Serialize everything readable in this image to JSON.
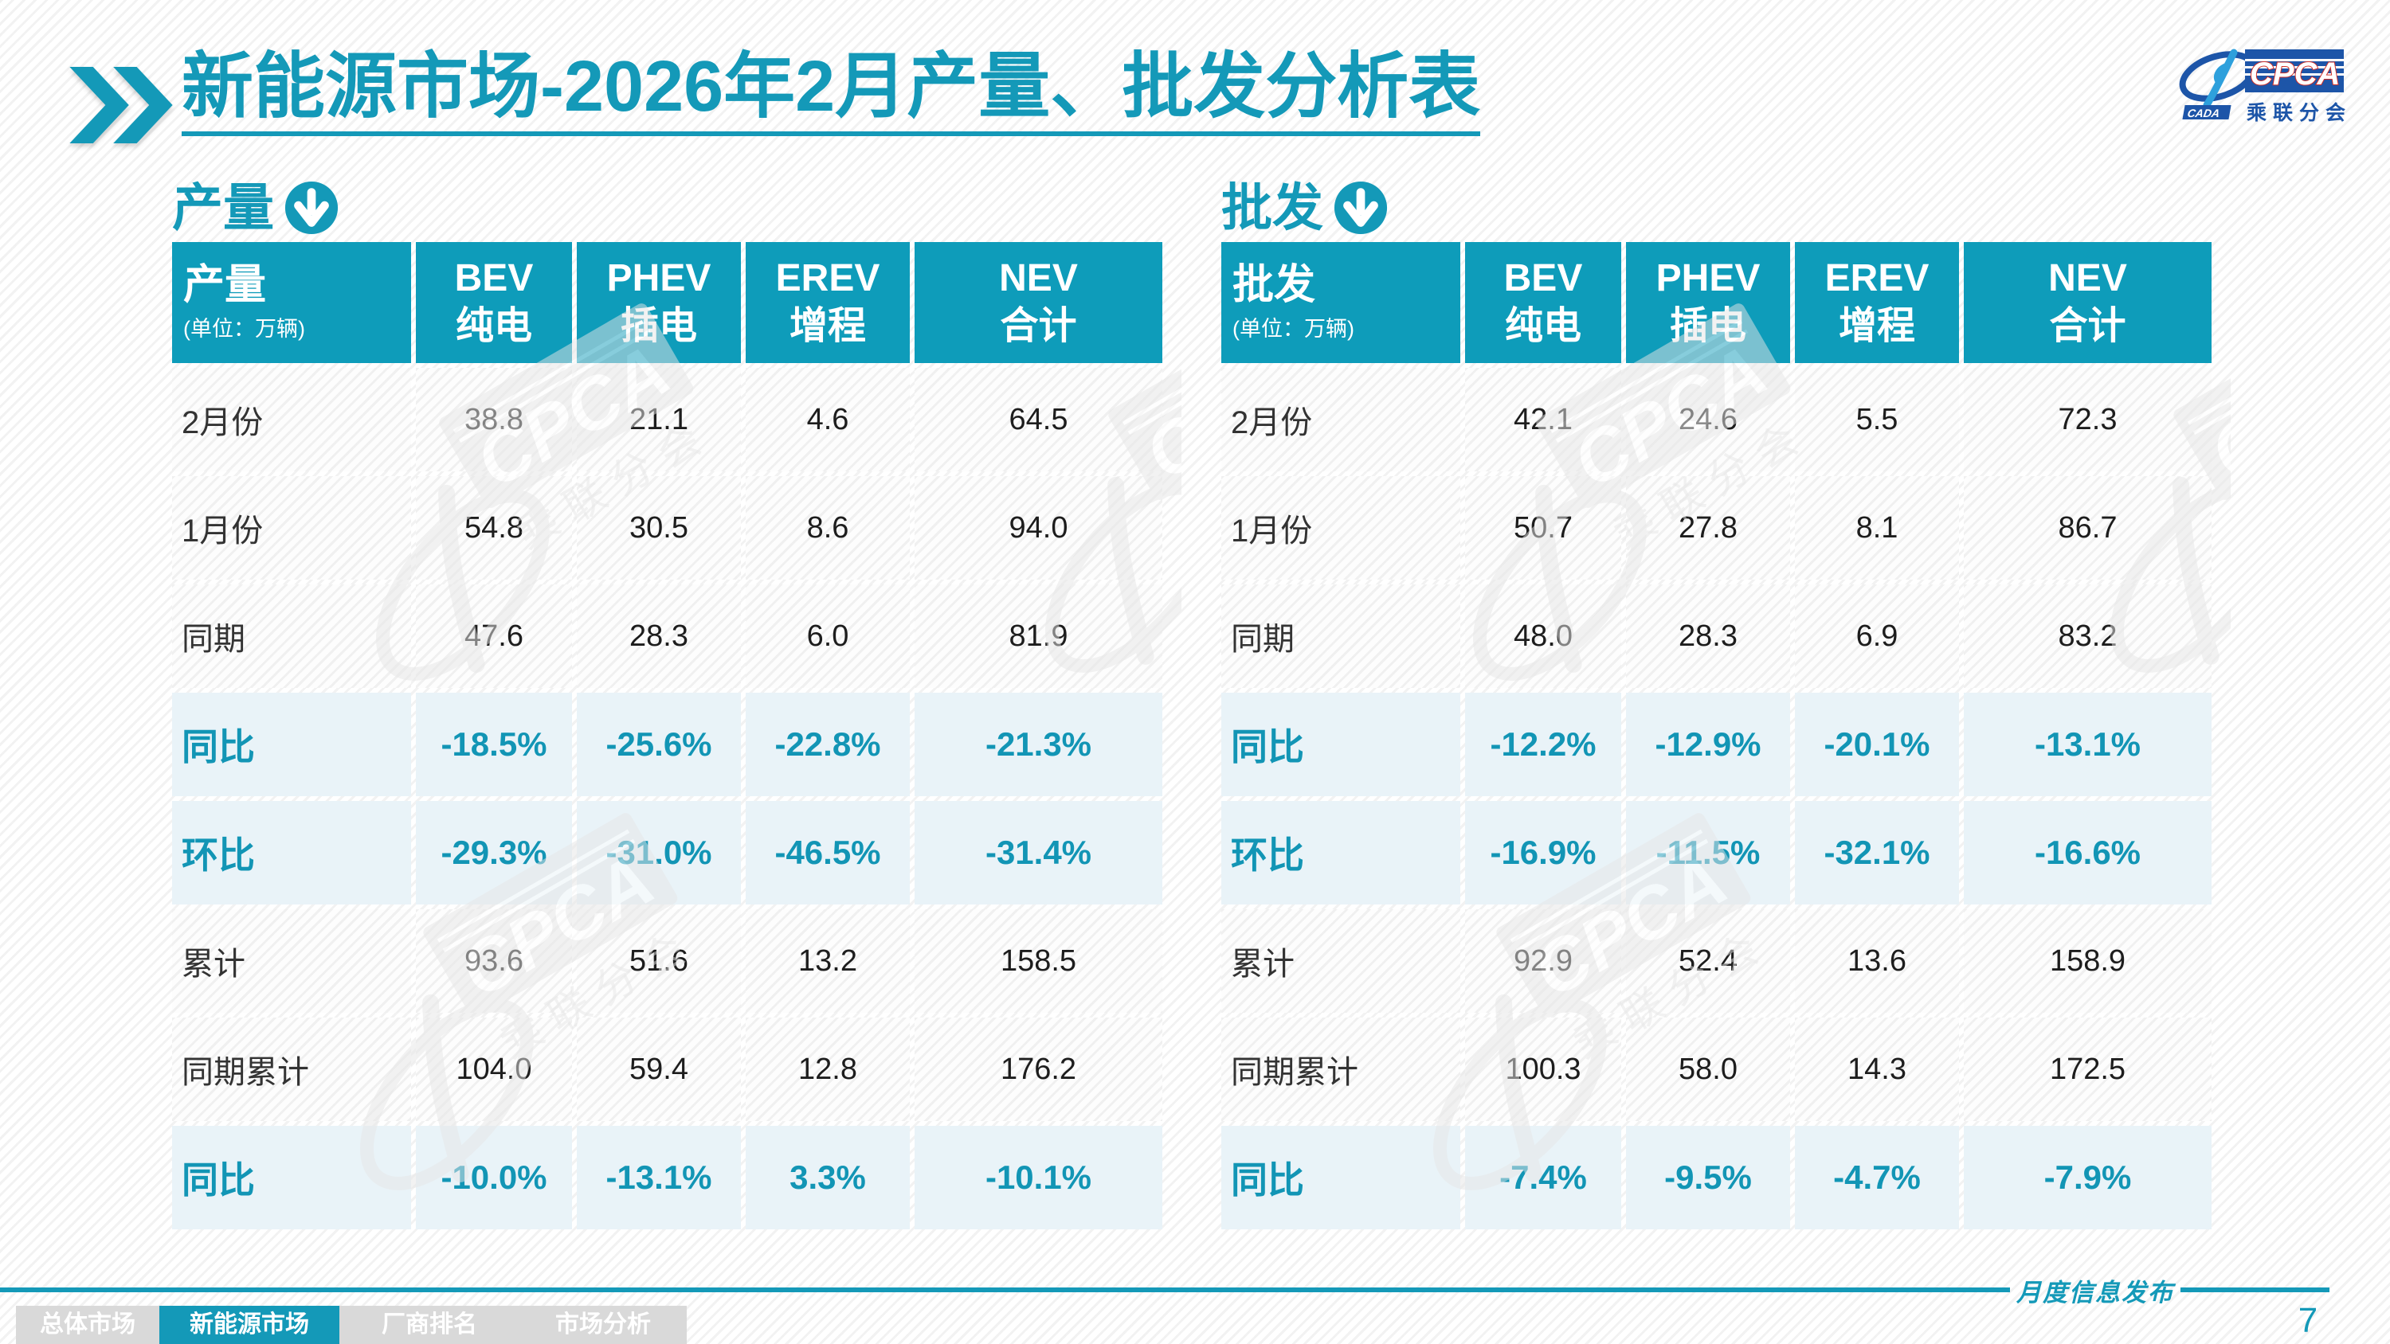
{
  "colors": {
    "accent": "#1499b8",
    "table_header_bg": "#0e9cba",
    "percent_text": "#1295b5",
    "percent_row_bg": "#e9f3f8",
    "nav_inactive_bg": "#d9d9d9"
  },
  "icons": {
    "title_marker": "double-chevron-icon",
    "section_marker": "circle-down-arrow-icon",
    "logo": "cpca-logo"
  },
  "title": {
    "part1": "新能源市场",
    "part2": "-2026年2月产量、批发分析表"
  },
  "logo": {
    "cpca": "CPCA",
    "cada": "CADA",
    "subtitle": "乘联分会"
  },
  "tables": [
    {
      "id": "production",
      "section_label": "产量",
      "header": {
        "label": "产量",
        "unit": "(单位：万辆)",
        "cols": [
          [
            "BEV",
            "纯电"
          ],
          [
            "PHEV",
            "插电"
          ],
          [
            "EREV",
            "增程"
          ],
          [
            "NEV",
            "合计"
          ]
        ]
      },
      "rows": [
        {
          "label": "2月份",
          "type": "num",
          "values": [
            "38.8",
            "21.1",
            "4.6",
            "64.5"
          ]
        },
        {
          "label": "1月份",
          "type": "num",
          "values": [
            "54.8",
            "30.5",
            "8.6",
            "94.0"
          ]
        },
        {
          "label": "同期",
          "type": "num",
          "values": [
            "47.6",
            "28.3",
            "6.0",
            "81.9"
          ]
        },
        {
          "label": "同比",
          "type": "pct",
          "values": [
            "-18.5%",
            "-25.6%",
            "-22.8%",
            "-21.3%"
          ]
        },
        {
          "label": "环比",
          "type": "pct",
          "values": [
            "-29.3%",
            "-31.0%",
            "-46.5%",
            "-31.4%"
          ]
        },
        {
          "label": "累计",
          "type": "num",
          "values": [
            "93.6",
            "51.6",
            "13.2",
            "158.5"
          ]
        },
        {
          "label": "同期累计",
          "type": "num",
          "values": [
            "104.0",
            "59.4",
            "12.8",
            "176.2"
          ]
        },
        {
          "label": "同比",
          "type": "pct",
          "values": [
            "-10.0%",
            "-13.1%",
            "3.3%",
            "-10.1%"
          ]
        }
      ]
    },
    {
      "id": "wholesale",
      "section_label": "批发",
      "header": {
        "label": "批发",
        "unit": "(单位：万辆)",
        "cols": [
          [
            "BEV",
            "纯电"
          ],
          [
            "PHEV",
            "插电"
          ],
          [
            "EREV",
            "增程"
          ],
          [
            "NEV",
            "合计"
          ]
        ]
      },
      "rows": [
        {
          "label": "2月份",
          "type": "num",
          "values": [
            "42.1",
            "24.6",
            "5.5",
            "72.3"
          ]
        },
        {
          "label": "1月份",
          "type": "num",
          "values": [
            "50.7",
            "27.8",
            "8.1",
            "86.7"
          ]
        },
        {
          "label": "同期",
          "type": "num",
          "values": [
            "48.0",
            "28.3",
            "6.9",
            "83.2"
          ]
        },
        {
          "label": "同比",
          "type": "pct",
          "values": [
            "-12.2%",
            "-12.9%",
            "-20.1%",
            "-13.1%"
          ]
        },
        {
          "label": "环比",
          "type": "pct",
          "values": [
            "-16.9%",
            "-11.5%",
            "-32.1%",
            "-16.6%"
          ]
        },
        {
          "label": "累计",
          "type": "num",
          "values": [
            "92.9",
            "52.4",
            "13.6",
            "158.9"
          ]
        },
        {
          "label": "同期累计",
          "type": "num",
          "values": [
            "100.3",
            "58.0",
            "14.3",
            "172.5"
          ]
        },
        {
          "label": "同比",
          "type": "pct",
          "values": [
            "-7.4%",
            "-9.5%",
            "-4.7%",
            "-7.9%"
          ]
        }
      ]
    }
  ],
  "footer": {
    "tabs": [
      {
        "label": "总体市场",
        "active": false
      },
      {
        "label": "新能源市场",
        "active": true
      },
      {
        "label": "厂商排名",
        "active": false
      },
      {
        "label": "市场分析",
        "active": false
      }
    ],
    "publish_label": "月度信息发布",
    "page_number": "7"
  }
}
